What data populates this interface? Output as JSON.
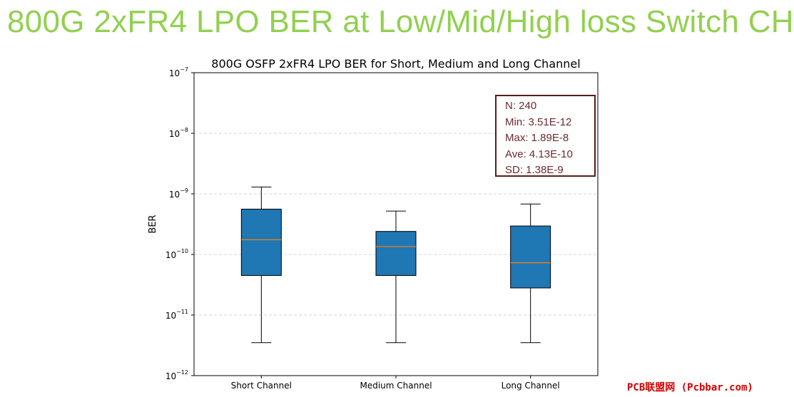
{
  "slide": {
    "title": "800G 2xFR4 LPO BER at Low/Mid/High loss Switch CH"
  },
  "stats_box": {
    "lines": [
      "N: 240",
      "Min: 3.51E-12",
      "Max: 1.89E-8",
      "Ave: 4.13E-10",
      "SD: 1.38E-9"
    ]
  },
  "watermark": "PCB联盟网 (Pcbbar.com)",
  "chart_data": {
    "type": "box",
    "title": "800G OSFP 2xFR4 LPO BER for Short, Medium and Long Channel",
    "xlabel": "",
    "ylabel": "BER",
    "yscale": "log",
    "ylim": [
      1e-12,
      1e-07
    ],
    "yticks": [
      {
        "value": 1e-07,
        "base": "10",
        "exp": "−7"
      },
      {
        "value": 1e-08,
        "base": "10",
        "exp": "−8"
      },
      {
        "value": 1e-09,
        "base": "10",
        "exp": "−9"
      },
      {
        "value": 1e-10,
        "base": "10",
        "exp": "−10"
      },
      {
        "value": 1e-11,
        "base": "10",
        "exp": "−11"
      },
      {
        "value": 1e-12,
        "base": "10",
        "exp": "−12"
      }
    ],
    "grid": "y-dashed",
    "categories": [
      "Short Channel",
      "Medium Channel",
      "Long Channel"
    ],
    "boxes": [
      {
        "whisker_low": 3.5e-12,
        "q1": 4.5e-11,
        "median": 1.75e-10,
        "q3": 5.6e-10,
        "whisker_high": 1.3e-09
      },
      {
        "whisker_low": 3.5e-12,
        "q1": 4.5e-11,
        "median": 1.35e-10,
        "q3": 2.4e-10,
        "whisker_high": 5.2e-10
      },
      {
        "whisker_low": 3.5e-12,
        "q1": 2.8e-11,
        "median": 7.3e-11,
        "q3": 2.95e-10,
        "whisker_high": 6.8e-10
      }
    ],
    "colors": {
      "box_fill": "#1f77b4",
      "median": "#ff7f0e",
      "grid": "#c8c8c8",
      "title_text": "#92d050"
    }
  }
}
